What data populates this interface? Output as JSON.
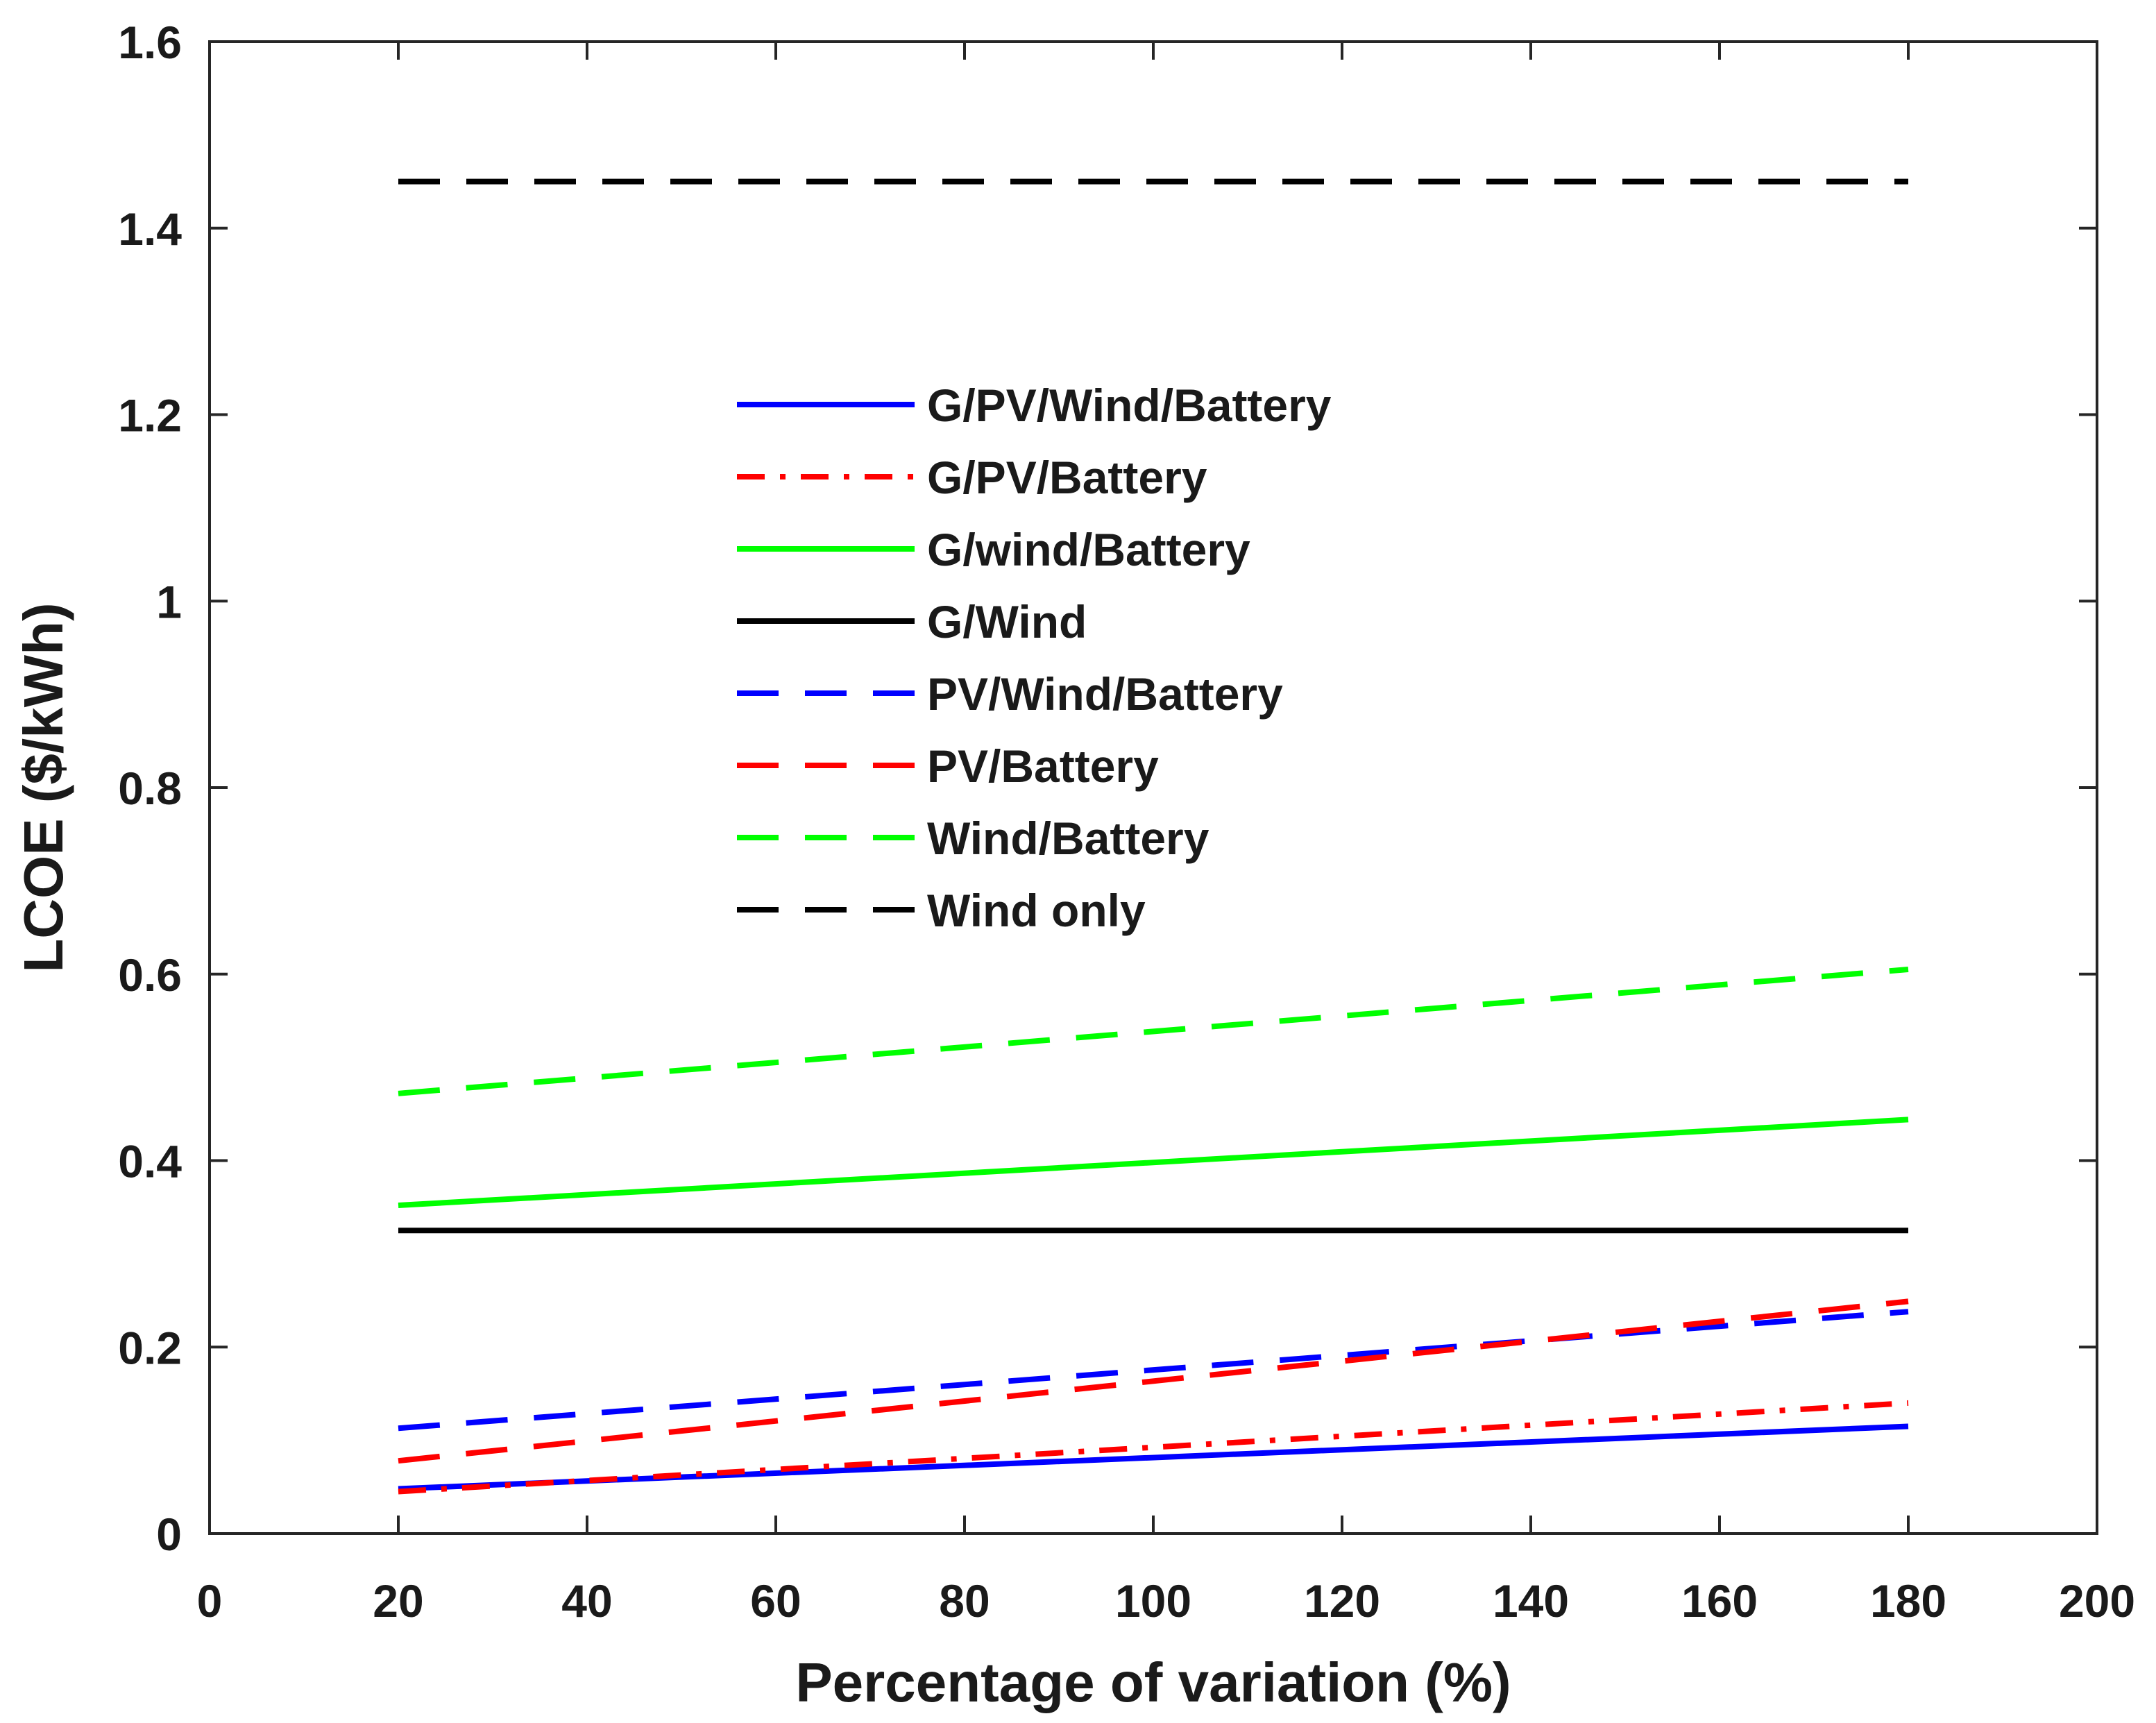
{
  "chart_data": {
    "type": "line",
    "title": "",
    "xlabel": "Percentage of variation (%)",
    "ylabel": "LCOE ($/kWh)",
    "xlim": [
      0,
      200
    ],
    "ylim": [
      0,
      1.6
    ],
    "xticks": [
      "0",
      "20",
      "40",
      "60",
      "80",
      "100",
      "120",
      "140",
      "160",
      "180",
      "200"
    ],
    "yticks": [
      "0",
      "0.2",
      "0.4",
      "0.6",
      "0.8",
      "1",
      "1.2",
      "1.4",
      "1.6"
    ],
    "grid": false,
    "legend_position": "upper-center",
    "x": [
      20,
      180
    ],
    "series": [
      {
        "name": "G/PV/Wind/Battery",
        "values": [
          0.048,
          0.115
        ],
        "color": "#0000ff",
        "style": "solid"
      },
      {
        "name": "G/PV/Battery",
        "values": [
          0.045,
          0.14
        ],
        "color": "#ff0000",
        "style": "dashdot"
      },
      {
        "name": "G/wind/Battery",
        "values": [
          0.352,
          0.444
        ],
        "color": "#00ff00",
        "style": "solid"
      },
      {
        "name": "G/Wind",
        "values": [
          0.325,
          0.325
        ],
        "color": "#000000",
        "style": "solid"
      },
      {
        "name": "PV/Wind/Battery",
        "values": [
          0.113,
          0.238
        ],
        "color": "#0000ff",
        "style": "dashed"
      },
      {
        "name": "PV/Battery",
        "values": [
          0.078,
          0.249
        ],
        "color": "#ff0000",
        "style": "dashed"
      },
      {
        "name": "Wind/Battery",
        "values": [
          0.472,
          0.605
        ],
        "color": "#00ff00",
        "style": "dashed"
      },
      {
        "name": "Wind only",
        "values": [
          1.45,
          1.45
        ],
        "color": "#000000",
        "style": "dashed"
      }
    ]
  }
}
